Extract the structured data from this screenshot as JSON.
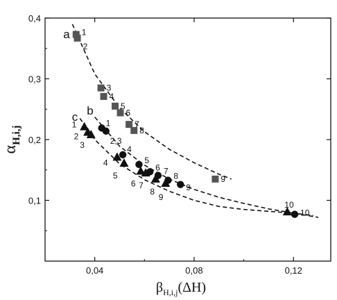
{
  "chart_data": {
    "type": "scatter",
    "xlabel": {
      "main": "β",
      "sub": "H,i,j",
      "suffix": "(ΔH)"
    },
    "ylabel": {
      "main": "α",
      "sub": "H,i,j"
    },
    "xlim": [
      0.02,
      0.135
    ],
    "ylim": [
      0.0,
      0.4
    ],
    "x_ticks": [
      0.04,
      0.08,
      0.12
    ],
    "x_tick_labels": [
      "0,04",
      "0,08",
      "0,12"
    ],
    "y_ticks": [
      0.1,
      0.2,
      0.3,
      0.4
    ],
    "y_tick_labels": [
      "0,1",
      "0,2",
      "0,3",
      "0,4"
    ],
    "grid": false,
    "series": [
      {
        "name": "a",
        "marker": "square",
        "color": "#555555",
        "points": [
          {
            "x": 0.0325,
            "y": 0.373,
            "label": "1"
          },
          {
            "x": 0.033,
            "y": 0.367,
            "label": "2"
          },
          {
            "x": 0.0425,
            "y": 0.285,
            "label": "3"
          },
          {
            "x": 0.0436,
            "y": 0.271,
            "label": "4"
          },
          {
            "x": 0.0482,
            "y": 0.255,
            "label": "5"
          },
          {
            "x": 0.0503,
            "y": 0.244,
            "label": "6"
          },
          {
            "x": 0.0538,
            "y": 0.225,
            "label": "7"
          },
          {
            "x": 0.0558,
            "y": 0.215,
            "label": "8"
          },
          {
            "x": 0.0885,
            "y": 0.135,
            "label": "9"
          }
        ],
        "trend": [
          [
            0.031,
            0.39
          ],
          [
            0.04,
            0.308
          ],
          [
            0.05,
            0.252
          ],
          [
            0.06,
            0.213
          ],
          [
            0.07,
            0.184
          ],
          [
            0.08,
            0.162
          ],
          [
            0.09,
            0.143
          ],
          [
            0.095,
            0.135
          ]
        ]
      },
      {
        "name": "b",
        "marker": "circle",
        "color": "#111111",
        "points": [
          {
            "x": 0.0428,
            "y": 0.219,
            "label": "1"
          },
          {
            "x": 0.0445,
            "y": 0.214,
            "label": "2,3"
          },
          {
            "x": 0.0513,
            "y": 0.175,
            "label": "4"
          },
          {
            "x": 0.0578,
            "y": 0.159,
            "label": "5"
          },
          {
            "x": 0.0622,
            "y": 0.147,
            "label": "6"
          },
          {
            "x": 0.0655,
            "y": 0.141,
            "label": "7"
          },
          {
            "x": 0.0695,
            "y": 0.133,
            "label": "8"
          },
          {
            "x": 0.0745,
            "y": 0.126,
            "label": "9"
          },
          {
            "x": 0.1205,
            "y": 0.077,
            "label": "10"
          }
        ],
        "trend": [
          [
            0.04,
            0.237
          ],
          [
            0.05,
            0.189
          ],
          [
            0.06,
            0.158
          ],
          [
            0.07,
            0.135
          ],
          [
            0.08,
            0.118
          ],
          [
            0.09,
            0.105
          ],
          [
            0.1,
            0.095
          ],
          [
            0.11,
            0.086
          ],
          [
            0.12,
            0.079
          ],
          [
            0.13,
            0.072
          ]
        ]
      },
      {
        "name": "c",
        "marker": "triangle",
        "color": "#111111",
        "points": [
          {
            "x": 0.0358,
            "y": 0.221,
            "label": "1"
          },
          {
            "x": 0.0372,
            "y": 0.212,
            "label": "2"
          },
          {
            "x": 0.0385,
            "y": 0.208,
            "label": "3"
          },
          {
            "x": 0.049,
            "y": 0.171,
            "label": "4"
          },
          {
            "x": 0.0518,
            "y": 0.161,
            "label": "5"
          },
          {
            "x": 0.0585,
            "y": 0.148,
            "label": "6"
          },
          {
            "x": 0.0605,
            "y": 0.145,
            "label": "7"
          },
          {
            "x": 0.0645,
            "y": 0.135,
            "label": "8"
          },
          {
            "x": 0.0685,
            "y": 0.128,
            "label": "9"
          },
          {
            "x": 0.1175,
            "y": 0.081,
            "label": "10"
          }
        ],
        "trend": [
          [
            0.034,
            0.235
          ],
          [
            0.04,
            0.2
          ],
          [
            0.05,
            0.16
          ],
          [
            0.06,
            0.134
          ],
          [
            0.07,
            0.115
          ],
          [
            0.08,
            0.1
          ],
          [
            0.09,
            0.09
          ],
          [
            0.1,
            0.085
          ],
          [
            0.11,
            0.082
          ],
          [
            0.12,
            0.079
          ],
          [
            0.128,
            0.075
          ]
        ]
      }
    ]
  }
}
